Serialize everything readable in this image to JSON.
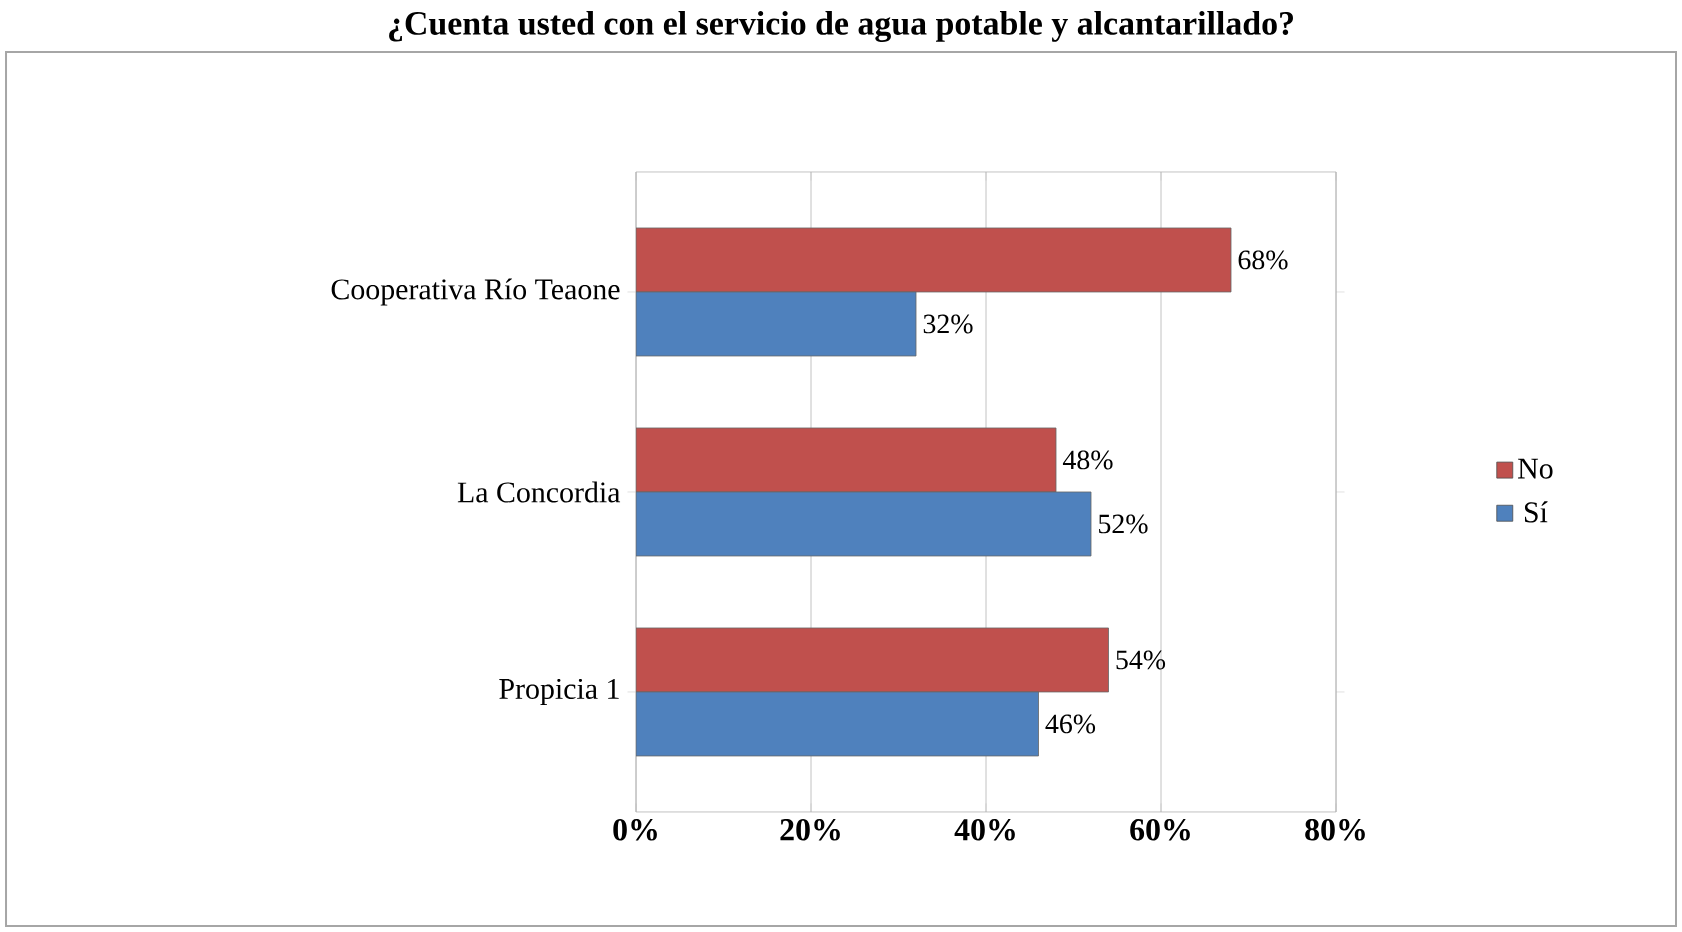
{
  "chart_data": {
    "type": "bar",
    "orientation": "horizontal",
    "title": "¿Cuenta usted con el servicio de agua potable y alcantarillado?",
    "categories": [
      "Cooperativa Río Teaone",
      "La Concordia",
      "Propicia 1"
    ],
    "series": [
      {
        "name": "No",
        "color": "#c0504d",
        "values": [
          68,
          48,
          54
        ],
        "value_labels": [
          "68%",
          "48%",
          "54%"
        ]
      },
      {
        "name": "Sí",
        "color": "#4f81bd",
        "values": [
          32,
          52,
          46
        ],
        "value_labels": [
          "32%",
          "52%",
          "46%"
        ]
      }
    ],
    "xlim": [
      0,
      80
    ],
    "xticks": [
      {
        "value": 0,
        "label": "0%"
      },
      {
        "value": 20,
        "label": "20%"
      },
      {
        "value": 40,
        "label": "40%"
      },
      {
        "value": 60,
        "label": "60%"
      },
      {
        "value": 80,
        "label": "80%"
      }
    ],
    "grid": "x",
    "legend": "right"
  }
}
